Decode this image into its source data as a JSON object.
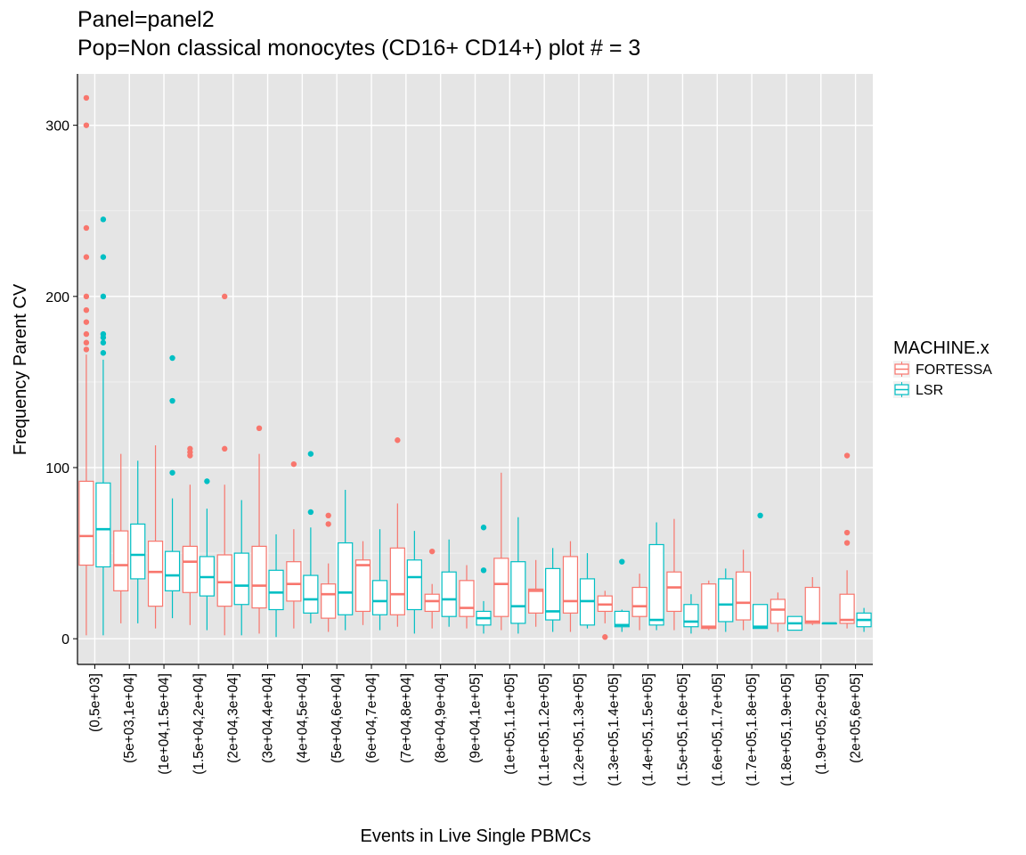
{
  "chart_data": {
    "type": "box",
    "title": "Panel=panel2",
    "subtitle": "Pop=Non classical monocytes (CD16+ CD14+) plot # = 3",
    "xlabel": "Events in Live Single PBMCs",
    "ylabel": "Frequency Parent CV",
    "ylim": [
      -15,
      330
    ],
    "yticks": [
      0,
      100,
      200,
      300
    ],
    "grid": true,
    "legend_position": "right",
    "legend": {
      "title": "MACHINE.x",
      "entries": [
        {
          "name": "FORTESSA",
          "color": "#F8766D"
        },
        {
          "name": "LSR",
          "color": "#00BFC4"
        }
      ]
    },
    "categories": [
      "(0,5e+03]",
      "(5e+03,1e+04]",
      "(1e+04,1.5e+04]",
      "(1.5e+04,2e+04]",
      "(2e+04,3e+04]",
      "(3e+04,4e+04]",
      "(4e+04,5e+04]",
      "(5e+04,6e+04]",
      "(6e+04,7e+04]",
      "(7e+04,8e+04]",
      "(8e+04,9e+04]",
      "(9e+04,1e+05]",
      "(1e+05,1.1e+05]",
      "(1.1e+05,1.2e+05]",
      "(1.2e+05,1.3e+05]",
      "(1.3e+05,1.4e+05]",
      "(1.4e+05,1.5e+05]",
      "(1.5e+05,1.6e+05]",
      "(1.6e+05,1.7e+05]",
      "(1.7e+05,1.8e+05]",
      "(1.8e+05,1.9e+05]",
      "(1.9e+05,2e+05]",
      "(2e+05,6e+05]"
    ],
    "series": [
      {
        "name": "FORTESSA",
        "color": "#F8766D",
        "boxes": [
          {
            "lo": 2,
            "q1": 43,
            "med": 60,
            "q3": 92,
            "hi": 166,
            "out": [
              169,
              173,
              178,
              185,
              192,
              200,
              223,
              240,
              300,
              316
            ]
          },
          {
            "lo": 9,
            "q1": 28,
            "med": 43,
            "q3": 63,
            "hi": 108,
            "out": []
          },
          {
            "lo": 6,
            "q1": 19,
            "med": 39,
            "q3": 57,
            "hi": 113,
            "out": []
          },
          {
            "lo": 8,
            "q1": 27,
            "med": 45,
            "q3": 54,
            "hi": 90,
            "out": [
              107,
              109,
              111
            ]
          },
          {
            "lo": 2,
            "q1": 19,
            "med": 33,
            "q3": 49,
            "hi": 90,
            "out": [
              111,
              200
            ]
          },
          {
            "lo": 3,
            "q1": 18,
            "med": 31,
            "q3": 54,
            "hi": 108,
            "out": [
              123
            ]
          },
          {
            "lo": 6,
            "q1": 22,
            "med": 32,
            "q3": 45,
            "hi": 64,
            "out": [
              102
            ]
          },
          {
            "lo": 4,
            "q1": 12,
            "med": 26,
            "q3": 32,
            "hi": 44,
            "out": [
              67,
              72
            ]
          },
          {
            "lo": 8,
            "q1": 16,
            "med": 43,
            "q3": 46,
            "hi": 57,
            "out": []
          },
          {
            "lo": 7,
            "q1": 14,
            "med": 26,
            "q3": 53,
            "hi": 79,
            "out": [
              116
            ]
          },
          {
            "lo": 6,
            "q1": 16,
            "med": 22,
            "q3": 26,
            "hi": 32,
            "out": [
              51
            ]
          },
          {
            "lo": 6,
            "q1": 13,
            "med": 18,
            "q3": 34,
            "hi": 43,
            "out": []
          },
          {
            "lo": 5,
            "q1": 13,
            "med": 32,
            "q3": 47,
            "hi": 97,
            "out": []
          },
          {
            "lo": 7,
            "q1": 15,
            "med": 28,
            "q3": 29,
            "hi": 46,
            "out": []
          },
          {
            "lo": 4,
            "q1": 15,
            "med": 22,
            "q3": 48,
            "hi": 57,
            "out": []
          },
          {
            "lo": 9,
            "q1": 16,
            "med": 20,
            "q3": 25,
            "hi": 28,
            "out": [
              1
            ]
          },
          {
            "lo": 5,
            "q1": 13,
            "med": 19,
            "q3": 30,
            "hi": 38,
            "out": []
          },
          {
            "lo": 5,
            "q1": 16,
            "med": 30,
            "q3": 39,
            "hi": 70,
            "out": []
          },
          {
            "lo": 5,
            "q1": 6,
            "med": 7,
            "q3": 32,
            "hi": 34,
            "out": []
          },
          {
            "lo": 5,
            "q1": 11,
            "med": 21,
            "q3": 39,
            "hi": 52,
            "out": []
          },
          {
            "lo": 4,
            "q1": 9,
            "med": 17,
            "q3": 23,
            "hi": 27,
            "out": []
          },
          {
            "lo": 8,
            "q1": 9,
            "med": 10,
            "q3": 30,
            "hi": 36,
            "out": []
          },
          {
            "lo": 6,
            "q1": 9,
            "med": 11,
            "q3": 26,
            "hi": 40,
            "out": [
              56,
              62,
              107
            ]
          }
        ]
      },
      {
        "name": "LSR",
        "color": "#00BFC4",
        "boxes": [
          {
            "lo": 2,
            "q1": 42,
            "med": 64,
            "q3": 91,
            "hi": 163,
            "out": [
              167,
              173,
              176,
              178,
              200,
              223,
              245
            ]
          },
          {
            "lo": 9,
            "q1": 35,
            "med": 49,
            "q3": 67,
            "hi": 104,
            "out": []
          },
          {
            "lo": 12,
            "q1": 28,
            "med": 37,
            "q3": 51,
            "hi": 82,
            "out": [
              97,
              139,
              164
            ]
          },
          {
            "lo": 5,
            "q1": 25,
            "med": 36,
            "q3": 48,
            "hi": 76,
            "out": [
              92
            ]
          },
          {
            "lo": 2,
            "q1": 20,
            "med": 31,
            "q3": 50,
            "hi": 81,
            "out": []
          },
          {
            "lo": 1,
            "q1": 17,
            "med": 27,
            "q3": 40,
            "hi": 61,
            "out": []
          },
          {
            "lo": 9,
            "q1": 15,
            "med": 23,
            "q3": 37,
            "hi": 65,
            "out": [
              74,
              108
            ]
          },
          {
            "lo": 5,
            "q1": 14,
            "med": 27,
            "q3": 56,
            "hi": 87,
            "out": []
          },
          {
            "lo": 5,
            "q1": 14,
            "med": 22,
            "q3": 34,
            "hi": 64,
            "out": []
          },
          {
            "lo": 3,
            "q1": 17,
            "med": 36,
            "q3": 46,
            "hi": 63,
            "out": []
          },
          {
            "lo": 7,
            "q1": 13,
            "med": 23,
            "q3": 39,
            "hi": 58,
            "out": []
          },
          {
            "lo": 3,
            "q1": 8,
            "med": 12,
            "q3": 16,
            "hi": 22,
            "out": [
              40,
              65
            ]
          },
          {
            "lo": 3,
            "q1": 9,
            "med": 19,
            "q3": 45,
            "hi": 71,
            "out": []
          },
          {
            "lo": 4,
            "q1": 11,
            "med": 16,
            "q3": 41,
            "hi": 53,
            "out": []
          },
          {
            "lo": 6,
            "q1": 8,
            "med": 22,
            "q3": 35,
            "hi": 50,
            "out": []
          },
          {
            "lo": 4,
            "q1": 7,
            "med": 8,
            "q3": 16,
            "hi": 17,
            "out": [
              45
            ]
          },
          {
            "lo": 5,
            "q1": 8,
            "med": 11,
            "q3": 55,
            "hi": 68,
            "out": []
          },
          {
            "lo": 3,
            "q1": 7,
            "med": 10,
            "q3": 20,
            "hi": 26,
            "out": []
          },
          {
            "lo": 4,
            "q1": 10,
            "med": 20,
            "q3": 35,
            "hi": 41,
            "out": []
          },
          {
            "lo": 6,
            "q1": 6,
            "med": 7,
            "q3": 20,
            "hi": 20,
            "out": [
              72
            ]
          },
          {
            "lo": 5,
            "q1": 5,
            "med": 9,
            "q3": 13,
            "hi": 13,
            "out": []
          },
          {
            "lo": 9,
            "q1": 9,
            "med": 9,
            "q3": 9,
            "hi": 9,
            "out": []
          },
          {
            "lo": 4,
            "q1": 7,
            "med": 11,
            "q3": 15,
            "hi": 18,
            "out": []
          }
        ]
      }
    ]
  }
}
